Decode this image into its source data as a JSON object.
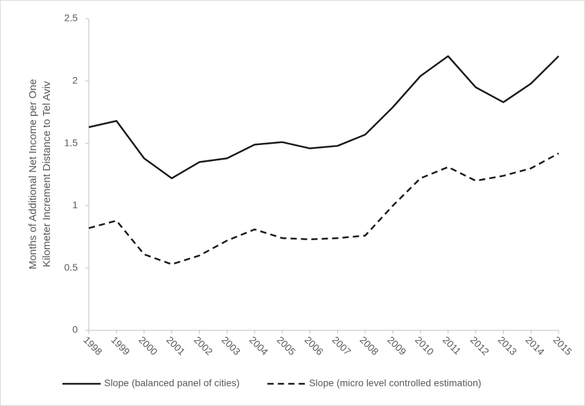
{
  "chart_data": {
    "type": "line",
    "ylabel": [
      "Months of Additional Net Income per One",
      "Kilometer Increment Distance to Tel Aviv"
    ],
    "x": [
      1998,
      1999,
      2000,
      2001,
      2002,
      2003,
      2004,
      2005,
      2006,
      2007,
      2008,
      2009,
      2010,
      2011,
      2012,
      2013,
      2014,
      2015
    ],
    "xlim": [
      1998,
      2015
    ],
    "xticks": [
      1998,
      1999,
      2000,
      2001,
      2002,
      2003,
      2004,
      2005,
      2006,
      2007,
      2008,
      2009,
      2010,
      2011,
      2012,
      2013,
      2014,
      2015
    ],
    "ylim": [
      0,
      2.5
    ],
    "yticks": [
      0,
      0.5,
      1,
      1.5,
      2,
      2.5
    ],
    "grid": false,
    "legend": "bottom",
    "series": [
      {
        "name": "Slope (balanced panel of cities)",
        "color": "#1a1a1a",
        "line_style": "solid",
        "values": [
          1.63,
          1.68,
          1.38,
          1.22,
          1.35,
          1.38,
          1.49,
          1.51,
          1.46,
          1.48,
          1.57,
          1.79,
          2.04,
          2.2,
          1.95,
          1.83,
          1.98,
          2.2
        ]
      },
      {
        "name": "Slope (micro level controlled estimation)",
        "color": "#1a1a1a",
        "line_style": "dashed",
        "values": [
          0.82,
          0.88,
          0.61,
          0.53,
          0.6,
          0.72,
          0.81,
          0.74,
          0.73,
          0.74,
          0.76,
          1.0,
          1.22,
          1.31,
          1.2,
          1.24,
          1.3,
          1.42
        ]
      }
    ]
  }
}
